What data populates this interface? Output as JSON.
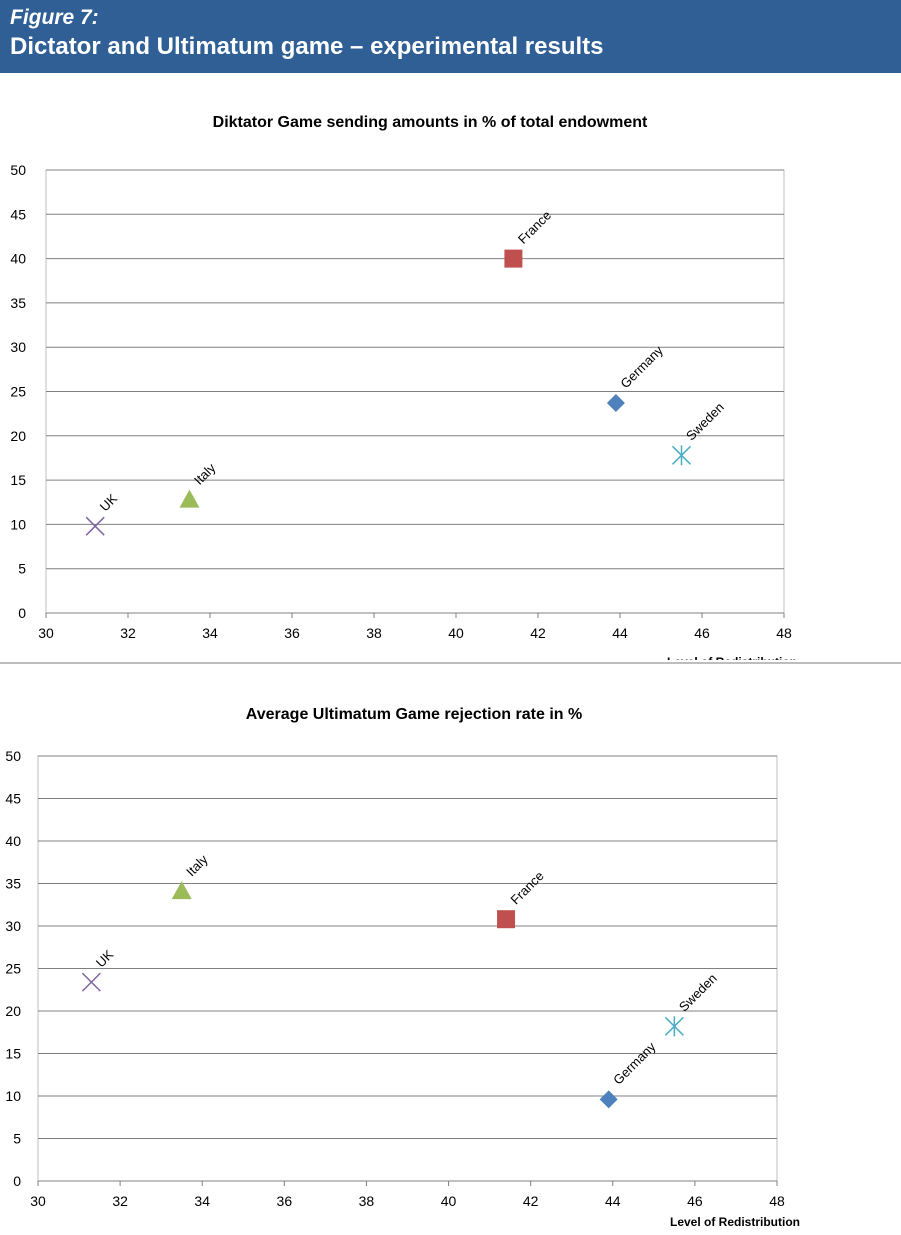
{
  "header": {
    "figure_label": "Figure 7:",
    "title": "Dictator and Ultimatum game – experimental results"
  },
  "colors": {
    "banner": "#2f5f95",
    "Germany": "#4f81bd",
    "France": "#c0504d",
    "Italy": "#9bbb59",
    "UK": "#8064a2",
    "Sweden": "#4bacc6"
  },
  "chart_data": [
    {
      "type": "scatter",
      "title": "Diktator Game sending amounts in % of total endowment",
      "xlabel": "Level of Redistribution",
      "ylabel": "",
      "xlim": [
        30,
        48
      ],
      "ylim": [
        0,
        50
      ],
      "xticks": [
        "30",
        "32",
        "34",
        "36",
        "38",
        "40",
        "42",
        "44",
        "46",
        "48"
      ],
      "yticks": [
        "0",
        "5",
        "10",
        "15",
        "20",
        "25",
        "30",
        "35",
        "40",
        "45",
        "50"
      ],
      "grid": "horizontal",
      "legend": "none",
      "series": [
        {
          "name": "UK",
          "marker": "x",
          "x": 31.2,
          "y": 9.8
        },
        {
          "name": "Italy",
          "marker": "triangle",
          "x": 33.5,
          "y": 12.8
        },
        {
          "name": "France",
          "marker": "square",
          "x": 41.4,
          "y": 40.0
        },
        {
          "name": "Germany",
          "marker": "diamond",
          "x": 43.9,
          "y": 23.7
        },
        {
          "name": "Sweden",
          "marker": "asterisk",
          "x": 45.5,
          "y": 17.8
        }
      ]
    },
    {
      "type": "scatter",
      "title": "Average Ultimatum Game rejection rate in %",
      "xlabel": "Level of Redistribution",
      "ylabel": "",
      "xlim": [
        30,
        48
      ],
      "ylim": [
        0,
        50
      ],
      "xticks": [
        "30",
        "32",
        "34",
        "36",
        "38",
        "40",
        "42",
        "44",
        "46",
        "48"
      ],
      "yticks": [
        "0",
        "5",
        "10",
        "15",
        "20",
        "25",
        "30",
        "35",
        "40",
        "45",
        "50"
      ],
      "grid": "horizontal",
      "legend": "none",
      "series": [
        {
          "name": "UK",
          "marker": "x",
          "x": 31.3,
          "y": 23.4
        },
        {
          "name": "Italy",
          "marker": "triangle",
          "x": 33.5,
          "y": 34.1
        },
        {
          "name": "France",
          "marker": "square",
          "x": 41.4,
          "y": 30.8
        },
        {
          "name": "Germany",
          "marker": "diamond",
          "x": 43.9,
          "y": 9.6
        },
        {
          "name": "Sweden",
          "marker": "asterisk",
          "x": 45.5,
          "y": 18.2
        }
      ]
    }
  ]
}
